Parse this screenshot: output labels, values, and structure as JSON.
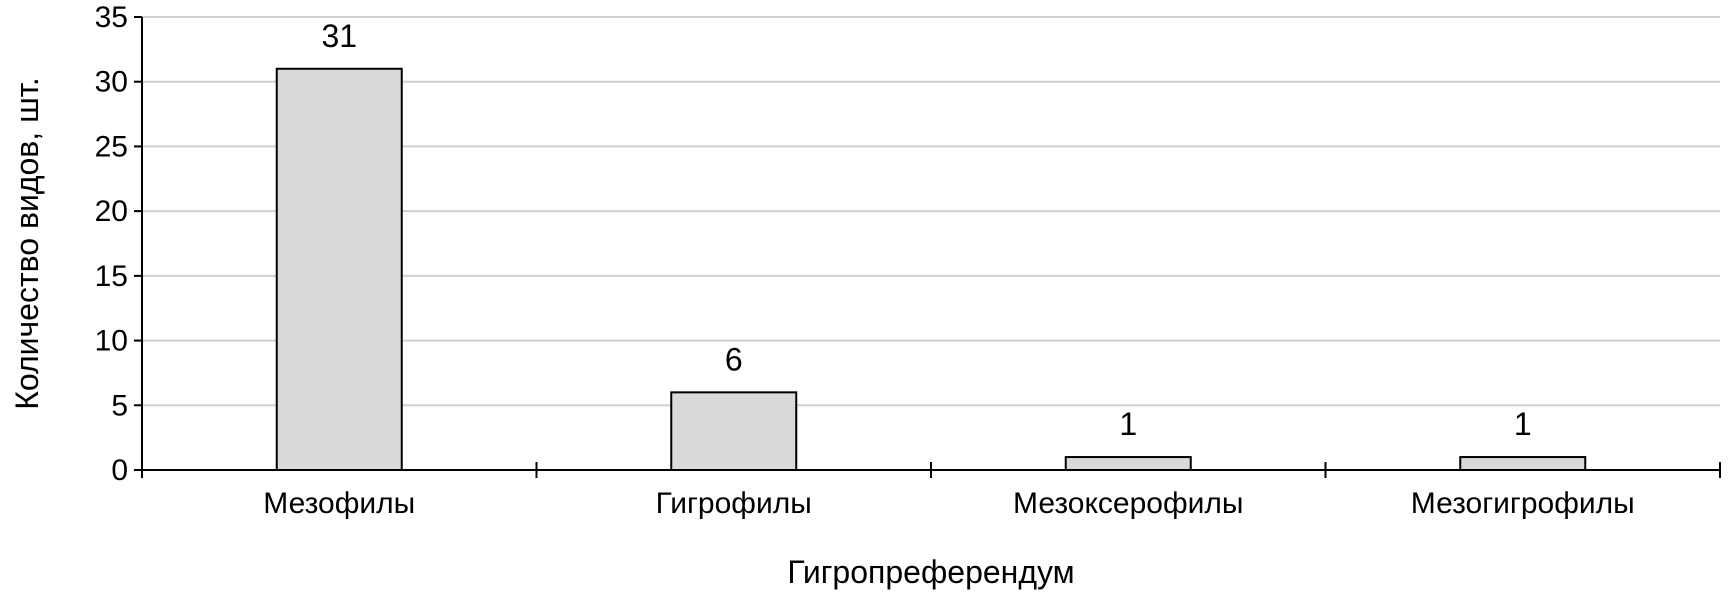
{
  "chart_data": {
    "type": "bar",
    "categories": [
      "Мезофилы",
      "Гигрофилы",
      "Мезоксерофилы",
      "Мезогигрофилы"
    ],
    "values": [
      31,
      6,
      1,
      1
    ],
    "title": "",
    "xlabel": "Гигропреферендум",
    "ylabel": "Количество видов, шт.",
    "ylim": [
      0,
      35
    ],
    "yticks": [
      0,
      5,
      10,
      15,
      20,
      25,
      30,
      35
    ],
    "grid": true,
    "data_labels": true,
    "legend": "none",
    "colors": {
      "bar_fill": "#d9d9d9",
      "bar_stroke": "#000000",
      "grid": "#d0d0d0",
      "axis": "#000000"
    }
  }
}
